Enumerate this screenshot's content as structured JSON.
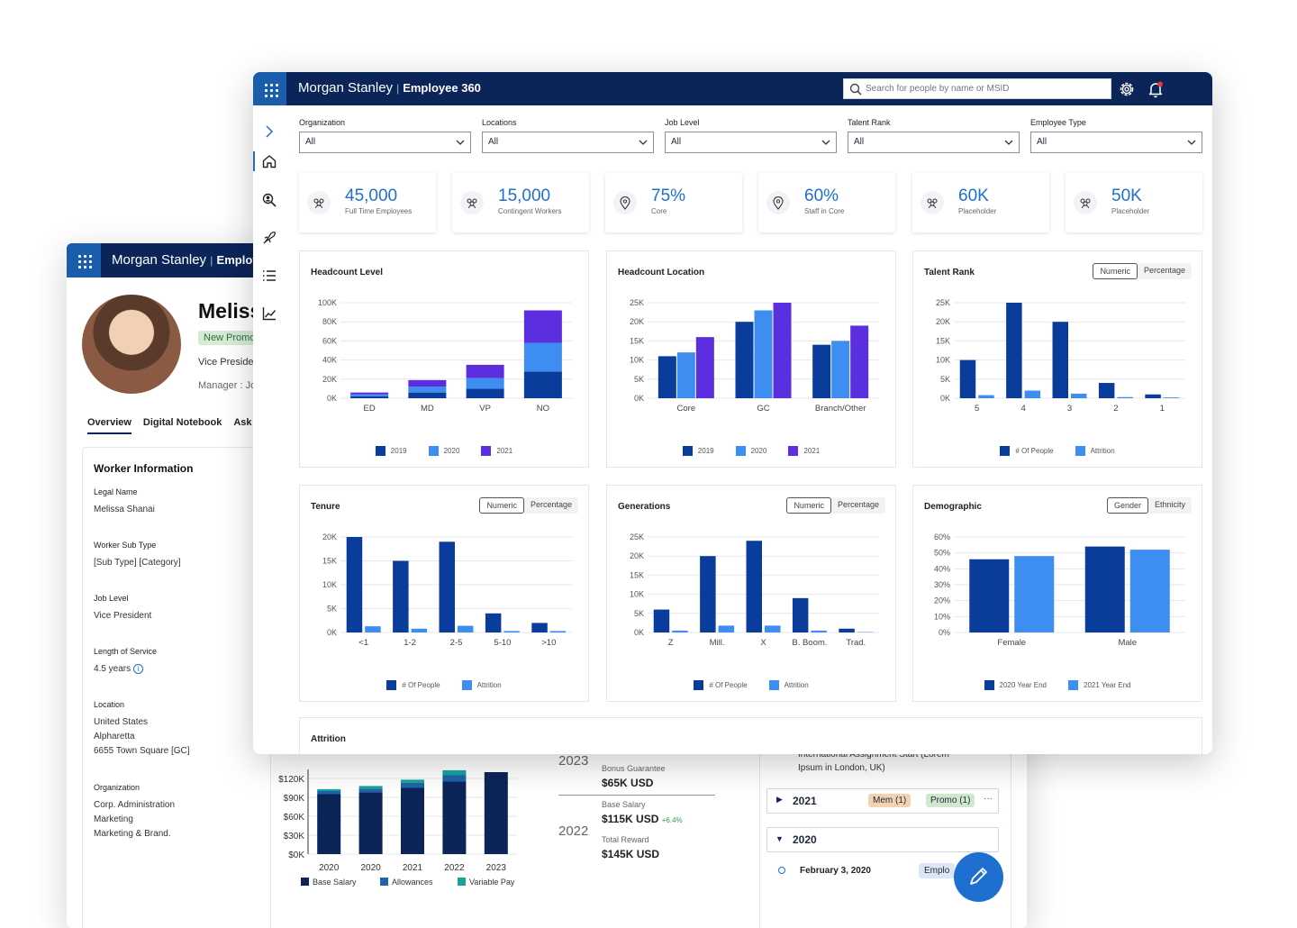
{
  "back": {
    "brand": "Morgan Stanley",
    "app_partial": "Employe",
    "person_name": "Meliss",
    "badge": "New Promo",
    "title": "Vice Presider",
    "manager": "Manager : Jo",
    "tabs": [
      "Overview",
      "Digital Notebook",
      "Ask"
    ],
    "worker": {
      "heading": "Worker Information",
      "legal_name_label": "Legal Name",
      "legal_name": "Melissa Shanai",
      "sub_type_label": "Worker Sub Type",
      "sub_type": "[Sub Type] [Category]",
      "job_level_label": "Job Level",
      "job_level": "Vice President",
      "service_label": "Length of Service",
      "service": "4.5 years",
      "location_label": "Location",
      "location_1": "United States",
      "location_2": "Alpharetta",
      "location_3": "6655 Town Square [GC]",
      "org_label": "Organization",
      "org_1": "Corp. Administration",
      "org_2": "Marketing",
      "org_3": "Marketing & Brand."
    },
    "comp": {
      "y_ticks": [
        "$120K",
        "$90K",
        "$60K",
        "$30K",
        "$0K"
      ],
      "x_ticks": [
        "2020",
        "2020",
        "2021",
        "2022",
        "2023"
      ],
      "legend": [
        "Base Salary",
        "Allowances",
        "Variable Pay"
      ],
      "year_2023": "2023",
      "bonus_label": "Bonus Guarantee",
      "bonus": "$65K USD",
      "year_2022": "2022",
      "base_label": "Base Salary",
      "base": "$115K USD",
      "base_delta": "+6.4%",
      "total_label": "Total Reward",
      "total": "$145K USD"
    },
    "timeline": {
      "event_text_1": "International Assignment Start (Lorem",
      "event_text_2": "Ipsum in London, UK)",
      "y2021": "2021",
      "mem": "Mem (1)",
      "promo": "Promo (1)",
      "more": "···",
      "y2020": "2020",
      "date": "February 3, 2020",
      "chip": "Emplo"
    }
  },
  "front": {
    "brand": "Morgan Stanley",
    "separator": "|",
    "app": "Employee 360",
    "search_placeholder": "Search for people by name or MSID",
    "filters": [
      {
        "label": "Organization",
        "value": "All"
      },
      {
        "label": "Locations",
        "value": "All"
      },
      {
        "label": "Job Level",
        "value": "All"
      },
      {
        "label": "Talent Rank",
        "value": "All"
      },
      {
        "label": "Employee Type",
        "value": "All"
      }
    ],
    "kpis": [
      {
        "value": "45,000",
        "label": "Full Time Employees",
        "icon": "people-icon"
      },
      {
        "value": "15,000",
        "label": "Contingent Workers",
        "icon": "people-icon"
      },
      {
        "value": "75%",
        "label": "Core",
        "icon": "location-pin-icon"
      },
      {
        "value": "60%",
        "label": "Staff in Core",
        "icon": "location-pin-icon"
      },
      {
        "value": "60K",
        "label": "Placeholder",
        "icon": "people-icon"
      },
      {
        "value": "50K",
        "label": "Placeholder",
        "icon": "people-icon"
      }
    ],
    "toggles": {
      "numeric": "Numeric",
      "percentage": "Percentage",
      "gender": "Gender",
      "ethnicity": "Ethnicity"
    },
    "attrition_title": "Attrition",
    "colors": {
      "dark": "#0a3c9c",
      "mid": "#3d8ef0",
      "purple": "#5b2ee0",
      "navy": "#0b2559",
      "teal": "#16a39a"
    }
  },
  "chart_data": [
    {
      "type": "bar",
      "stacked": true,
      "title": "Headcount Level",
      "categories": [
        "ED",
        "MD",
        "VP",
        "NO"
      ],
      "series": [
        {
          "name": "2019",
          "values": [
            2000,
            6000,
            10000,
            28000
          ]
        },
        {
          "name": "2020",
          "values": [
            2000,
            6000,
            11000,
            30000
          ]
        },
        {
          "name": "2021",
          "values": [
            2000,
            7000,
            14000,
            34000
          ]
        }
      ],
      "yticks": [
        "0K",
        "20K",
        "40K",
        "60K",
        "80K",
        "100K"
      ],
      "ylim": [
        0,
        100000
      ],
      "legend": "bottom"
    },
    {
      "type": "bar",
      "title": "Headcount Location",
      "categories": [
        "Core",
        "GC",
        "Branch/Other"
      ],
      "series": [
        {
          "name": "2019",
          "values": [
            11000,
            20000,
            14000
          ]
        },
        {
          "name": "2020",
          "values": [
            12000,
            23000,
            15000
          ]
        },
        {
          "name": "2021",
          "values": [
            16000,
            25000,
            19000
          ]
        }
      ],
      "yticks": [
        "0K",
        "5K",
        "10K",
        "15K",
        "20K",
        "25K"
      ],
      "ylim": [
        0,
        25000
      ],
      "legend": "bottom"
    },
    {
      "type": "bar",
      "title": "Talent Rank",
      "categories": [
        "5",
        "4",
        "3",
        "2",
        "1"
      ],
      "series": [
        {
          "name": "# Of People",
          "values": [
            10000,
            25000,
            20000,
            4000,
            1000
          ]
        },
        {
          "name": "Attrition",
          "values": [
            800,
            2000,
            1200,
            300,
            200
          ]
        }
      ],
      "yticks": [
        "0K",
        "5K",
        "10K",
        "15K",
        "20K",
        "25K"
      ],
      "ylim": [
        0,
        25000
      ],
      "legend": "bottom"
    },
    {
      "type": "bar",
      "title": "Tenure",
      "categories": [
        "<1",
        "1-2",
        "2-5",
        "5-10",
        ">10"
      ],
      "series": [
        {
          "name": "# Of People",
          "values": [
            20000,
            15000,
            19000,
            4000,
            2000
          ]
        },
        {
          "name": "Attrition",
          "values": [
            1300,
            800,
            1400,
            300,
            300
          ]
        }
      ],
      "yticks": [
        "0K",
        "5K",
        "10K",
        "15K",
        "20K"
      ],
      "ylim": [
        0,
        20000
      ],
      "legend": "bottom"
    },
    {
      "type": "bar",
      "title": "Generations",
      "categories": [
        "Z",
        "Mill.",
        "X",
        "B. Boom.",
        "Trad."
      ],
      "series": [
        {
          "name": "# Of People",
          "values": [
            6000,
            20000,
            24000,
            9000,
            1000
          ]
        },
        {
          "name": "Attrition",
          "values": [
            500,
            1800,
            1800,
            500,
            100
          ]
        }
      ],
      "yticks": [
        "0K",
        "5K",
        "10K",
        "15K",
        "20K",
        "25K"
      ],
      "ylim": [
        0,
        25000
      ],
      "legend": "bottom"
    },
    {
      "type": "bar",
      "title": "Demographic",
      "categories": [
        "Female",
        "Male"
      ],
      "series": [
        {
          "name": "2020 Year End",
          "values": [
            46,
            54
          ]
        },
        {
          "name": "2021 Year End",
          "values": [
            48,
            52
          ]
        }
      ],
      "yticks": [
        "0%",
        "10%",
        "20%",
        "30%",
        "40%",
        "50%",
        "60%"
      ],
      "ylim": [
        0,
        60
      ],
      "legend": "bottom"
    },
    {
      "type": "bar",
      "stacked": true,
      "title": "",
      "categories": [
        "2020",
        "2020",
        "2021",
        "2022",
        "2023"
      ],
      "series": [
        {
          "name": "Base Salary",
          "values": [
            95,
            98,
            105,
            115,
            130
          ]
        },
        {
          "name": "Allowances",
          "values": [
            5,
            6,
            8,
            10,
            0
          ]
        },
        {
          "name": "Variable Pay",
          "values": [
            3,
            4,
            5,
            8,
            0
          ]
        }
      ],
      "ylim": [
        0,
        130
      ]
    }
  ]
}
